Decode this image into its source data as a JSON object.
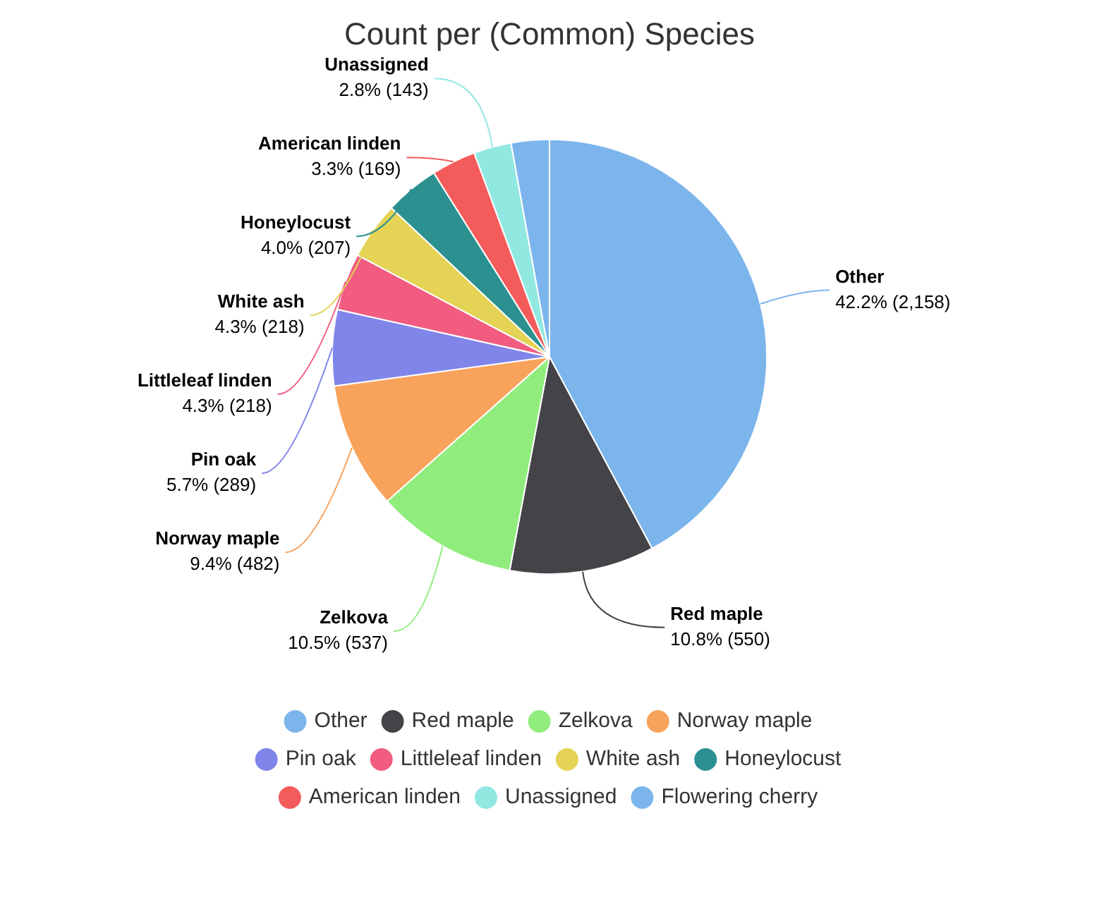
{
  "chart_data": {
    "type": "pie",
    "title": "Count per (Common) Species",
    "categories": [
      "Other",
      "Red maple",
      "Zelkova",
      "Norway maple",
      "Pin oak",
      "Littleleaf linden",
      "White ash",
      "Honeylocust",
      "American linden",
      "Unassigned",
      "Flowering cherry"
    ],
    "values": [
      2158,
      550,
      537,
      482,
      289,
      218,
      218,
      207,
      169,
      143,
      145
    ],
    "value_labels": [
      "42.2% (2,158)",
      "10.8% (550)",
      "10.5% (537)",
      "9.4% (482)",
      "5.7% (289)",
      "4.3% (218)",
      "4.3% (218)",
      "4.0% (207)",
      "3.3% (169)",
      "2.8% (143)",
      null
    ],
    "colors": [
      "#7cb5ec",
      "#434348",
      "#90ed7d",
      "#f7a35c",
      "#8085e9",
      "#f15c80",
      "#e4d354",
      "#2b908f",
      "#f45b5b",
      "#91e8e1",
      "#7cb5ec"
    ],
    "legend": "bottom"
  }
}
